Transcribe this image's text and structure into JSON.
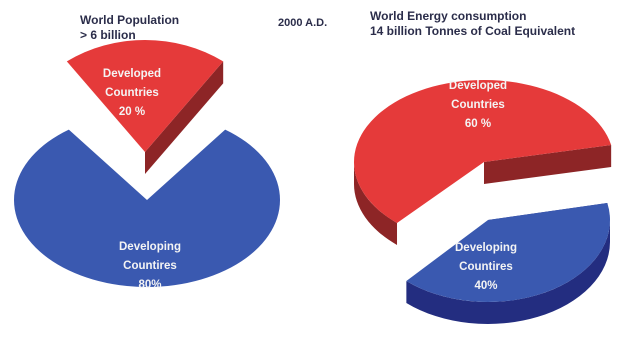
{
  "titles": {
    "left_line1": "World Population",
    "left_line2": "> 6 billion",
    "center": "2000  A.D.",
    "right_line1": "World Energy consumption",
    "right_line2": "14 billion Tonnes of Coal Equivalent"
  },
  "colors": {
    "developed": "#e53a3a",
    "developed_side": "#8d2526",
    "developing": "#3a59b0",
    "developing_side": "#232d80"
  },
  "chart_data": [
    {
      "type": "pie",
      "title": "World Population > 6 billion",
      "slices": [
        {
          "label_lines": [
            "Developed",
            "Countries",
            "20 %"
          ],
          "value": 20
        },
        {
          "label_lines": [
            "Developing",
            "Countires",
            "80%"
          ],
          "value": 80
        }
      ]
    },
    {
      "type": "pie",
      "title": "World Energy consumption 14 billion Tonnes of Coal Equivalent",
      "slices": [
        {
          "label_lines": [
            "Developed",
            "Countries",
            "60 %"
          ],
          "value": 60
        },
        {
          "label_lines": [
            "Developing",
            "Countires",
            "40%"
          ],
          "value": 40
        }
      ]
    }
  ]
}
